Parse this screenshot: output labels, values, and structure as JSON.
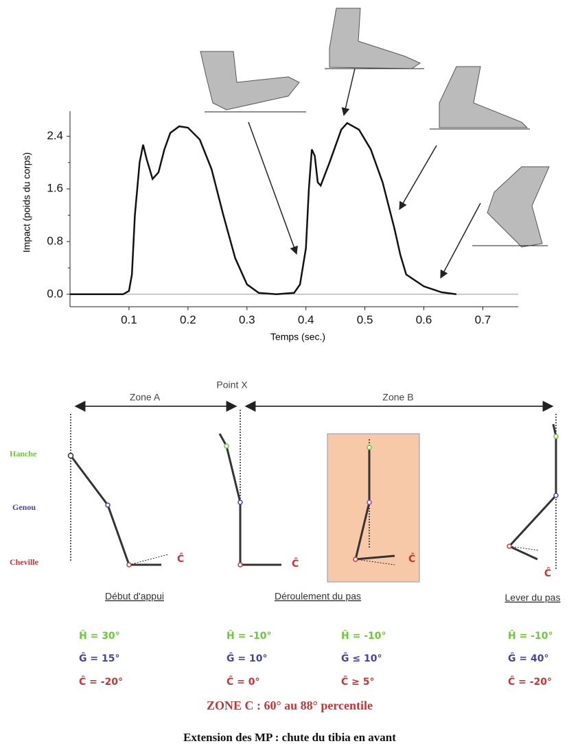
{
  "chart_data": {
    "type": "line",
    "y_label": "Impact (poids du corps)",
    "x_label": "Temps (sec.)",
    "xlim": [
      0,
      0.76
    ],
    "ylim": [
      -0.19,
      2.78
    ],
    "xticks": [
      0.1,
      0.2,
      0.3,
      0.4,
      0.5,
      0.6,
      0.7
    ],
    "yticks": [
      {
        "value": 0,
        "label": "0.0"
      },
      0.8,
      1.6,
      2.4
    ],
    "zero_line": true,
    "series": [
      {
        "color": "#111111",
        "x": [
          0,
          0.05,
          0.09,
          0.1,
          0.105,
          0.11,
          0.118,
          0.124,
          0.13,
          0.14,
          0.15,
          0.16,
          0.17,
          0.185,
          0.2,
          0.22,
          0.24,
          0.26,
          0.28,
          0.3,
          0.32,
          0.35,
          0.38,
          0.39,
          0.4,
          0.405,
          0.41,
          0.415,
          0.42,
          0.425,
          0.44,
          0.46,
          0.47,
          0.49,
          0.51,
          0.53,
          0.55,
          0.56,
          0.57,
          0.6,
          0.63,
          0.655
        ],
        "values": [
          0,
          0,
          0,
          0.05,
          0.3,
          1.2,
          2.0,
          2.27,
          2.05,
          1.75,
          1.85,
          2.2,
          2.45,
          2.55,
          2.53,
          2.35,
          1.9,
          1.2,
          0.55,
          0.15,
          0.02,
          0,
          0.02,
          0.15,
          0.7,
          1.6,
          2.2,
          2.1,
          1.7,
          1.65,
          2.0,
          2.5,
          2.6,
          2.5,
          2.2,
          1.7,
          1.0,
          0.6,
          0.3,
          0.12,
          0.03,
          0
        ]
      }
    ]
  },
  "diagram": {
    "point": "Point X",
    "zones": [
      "Zone A",
      "Zone B"
    ],
    "joints": [
      "Hanche",
      "Genou",
      "Cheville"
    ],
    "angle_marks": [
      "Ĉ",
      "Ĉ",
      "Ĉ",
      "Ĉ"
    ],
    "phases": [
      "Début d'appui",
      "Déroulement du pas",
      "Lever du pas"
    ],
    "angles": [
      [
        "Ĥ  =  30°",
        "Ĝ  =  15°",
        "Ĉ  =  -20°"
      ],
      [
        "Ĥ  =  -10°",
        "Ĝ  =  10°",
        "Ĉ  =  0°"
      ],
      [
        "Ĥ  =  -10°",
        "Ĝ  ≤  10°",
        "Ĉ  ≥  5°"
      ],
      [
        "Ĥ  =  -10°",
        "Ĝ  =  40°",
        "Ĉ  =  -20°"
      ]
    ],
    "zone_c": "ZONE C : 60° au 88° percentile",
    "caption": "Extension des MP : chute du tibia en avant"
  }
}
